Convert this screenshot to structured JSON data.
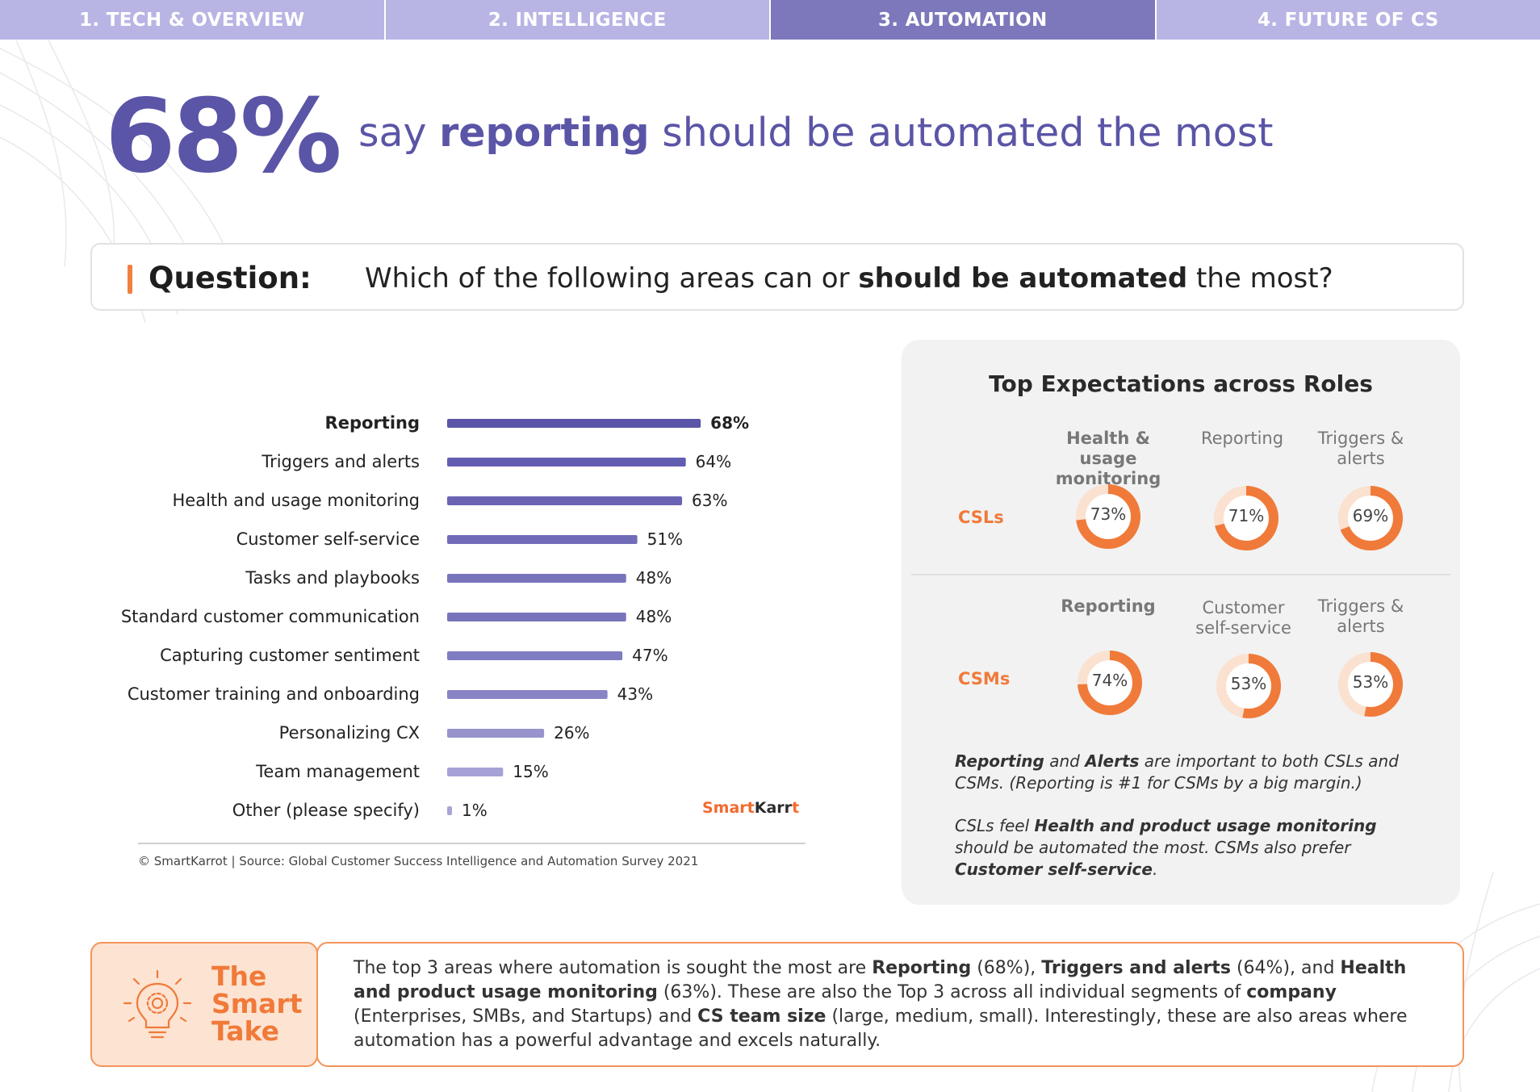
{
  "tabs": [
    {
      "label": "1. TECH & OVERVIEW"
    },
    {
      "label": "2. INTELLIGENCE"
    },
    {
      "label": "3. AUTOMATION"
    },
    {
      "label": "4. FUTURE OF CS"
    }
  ],
  "headline": {
    "stat": "68%",
    "pre": "say ",
    "bold": "reporting",
    "post": " should be automated the most"
  },
  "question": {
    "label": "Question:",
    "pre": "Which of the following areas can or ",
    "bold": "should be automated",
    "post": " the most?"
  },
  "chart_data": {
    "type": "bar",
    "orientation": "horizontal",
    "categories": [
      "Reporting",
      "Triggers and alerts",
      "Health and usage monitoring",
      "Customer self-service",
      "Tasks and playbooks",
      "Standard customer communication",
      "Capturing customer sentiment",
      "Customer training and onboarding",
      "Personalizing CX",
      "Team management",
      "Other (please specify)"
    ],
    "values": [
      68,
      64,
      63,
      51,
      48,
      48,
      47,
      43,
      26,
      15,
      1
    ],
    "value_labels": [
      "68%",
      "64%",
      "63%",
      "51%",
      "48%",
      "48%",
      "47%",
      "43%",
      "26%",
      "15%",
      "1%"
    ],
    "highlight": "Reporting",
    "bar_colors": [
      "#5a55a6",
      "#625db0",
      "#6964b3",
      "#716cb8",
      "#7874bc",
      "#7874bc",
      "#807cc1",
      "#8884c5",
      "#9793cd",
      "#a6a2d5",
      "#a9a6d6"
    ],
    "xlim": [
      0,
      100
    ]
  },
  "branding": {
    "logo_part1": "Smart",
    "logo_part2": "Karr",
    "logo_part3": "t"
  },
  "source": "© SmartKarrot | Source: Global Customer Success Intelligence and Automation Survey 2021",
  "panel": {
    "title": "Top Expectations across Roles",
    "groups": [
      {
        "role": "CSLs",
        "items": [
          {
            "label": "Health & usage monitoring",
            "value": 73,
            "text": "73%",
            "bold": true
          },
          {
            "label": "Reporting",
            "value": 71,
            "text": "71%",
            "bold": false
          },
          {
            "label": "Triggers & alerts",
            "value": 69,
            "text": "69%",
            "bold": false
          }
        ]
      },
      {
        "role": "CSMs",
        "items": [
          {
            "label": "Reporting",
            "value": 74,
            "text": "74%",
            "bold": true
          },
          {
            "label": "Customer self-service",
            "value": 53,
            "text": "53%",
            "bold": false
          },
          {
            "label": "Triggers & alerts",
            "value": 53,
            "text": "53%",
            "bold": false
          }
        ]
      }
    ],
    "note1": {
      "b1": "Reporting",
      "t1": " and ",
      "b2": "Alerts",
      "t2": " are important to both CSLs and CSMs. (Reporting is #1 for CSMs by a big margin.)"
    },
    "note2": {
      "t1": "CSLs feel ",
      "b1": "Health and product usage monitoring",
      "t2": " should be automated the most. CSMs also prefer ",
      "b2": "Customer self-service",
      "t3": "."
    },
    "donut_color": "#f07a3a",
    "donut_track": "#fbe1d0"
  },
  "smart_take": {
    "title_lines": [
      "The",
      "Smart",
      "Take"
    ],
    "icon": "lightbulb-gear-icon",
    "parts": [
      {
        "t": "The top 3 areas where automation is sought the most are "
      },
      {
        "b": "Reporting"
      },
      {
        "t": " (68%), "
      },
      {
        "b": "Triggers and alerts"
      },
      {
        "t": " (64%), and "
      },
      {
        "b": "Health and product usage monitoring"
      },
      {
        "t": " (63%). These are also the Top 3 across all individual segments of "
      },
      {
        "b": "company"
      },
      {
        "t": " (Enterprises, SMBs, and Startups) and "
      },
      {
        "b": "CS team size"
      },
      {
        "t": " (large, medium, small). Interestingly, these are also areas where automation has a powerful advantage and excels naturally."
      }
    ]
  }
}
